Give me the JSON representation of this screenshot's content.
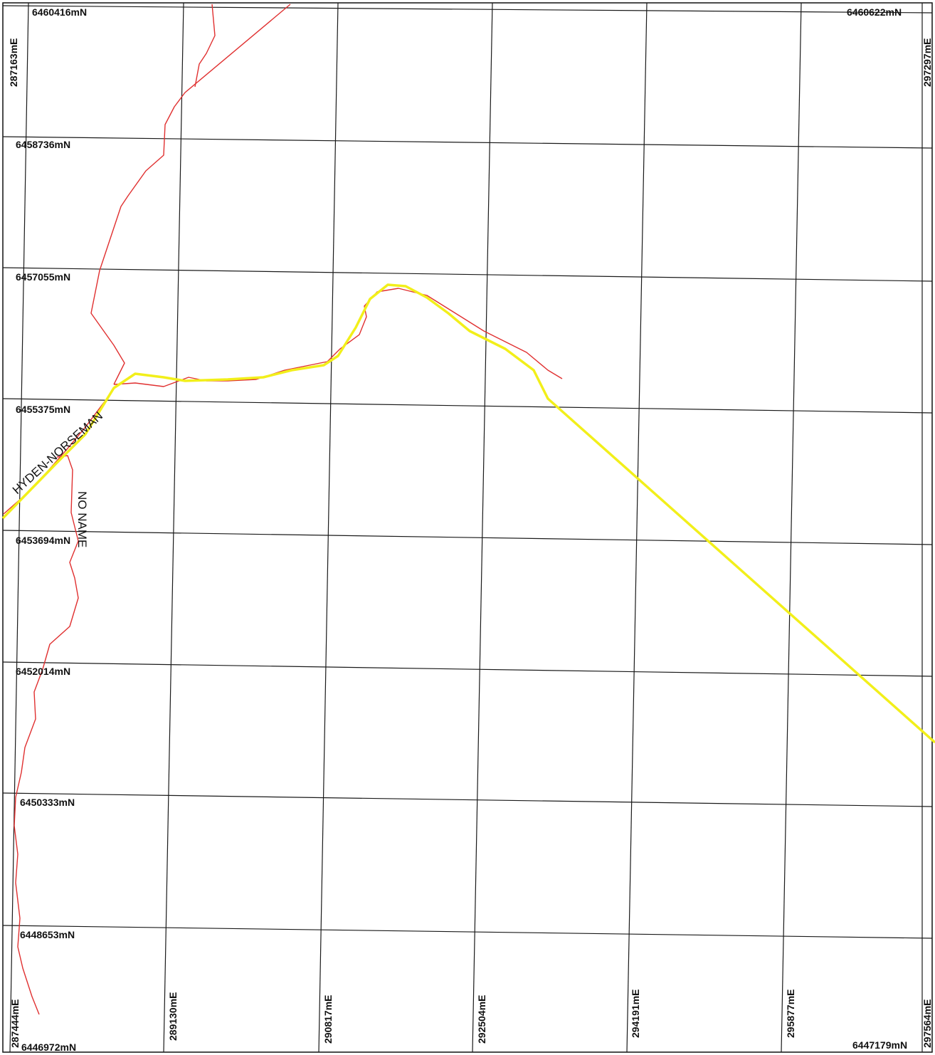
{
  "map": {
    "northing_labels": [
      "6460416mN",
      "6458736mN",
      "6457055mN",
      "6455375mN",
      "6453694mN",
      "6452014mN",
      "6450333mN",
      "6448653mN",
      "6446972mN"
    ],
    "corner_top_right_northing": "6460622mN",
    "corner_bottom_right_northing": "6447179mN",
    "corner_top_left_easting": "287163mE",
    "corner_top_right_easting": "297297mE",
    "easting_labels": [
      "287444mE",
      "289130mE",
      "290817mE",
      "292504mE",
      "294191mE",
      "295877mE",
      "297564mE"
    ],
    "road_label_main": "HYDEN-NORSEMAN",
    "road_label_side": "NO NAME",
    "colors": {
      "grid": "#1a1a1a",
      "road_red": "#e03030",
      "road_yellow": "#f2ef1a",
      "frame": "#111111"
    }
  }
}
